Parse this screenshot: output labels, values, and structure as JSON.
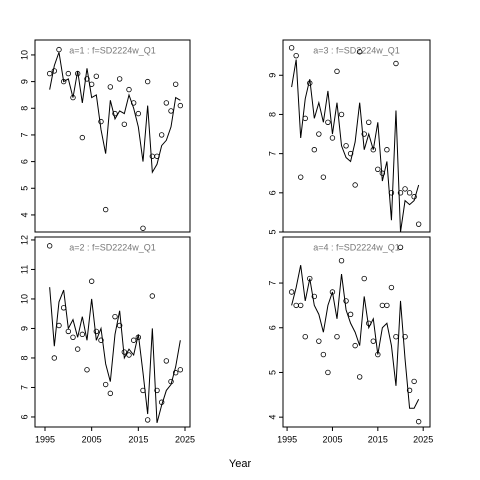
{
  "xlabel": "Year",
  "chart_data": [
    {
      "type": "line",
      "title": "a=1 : f=SD2224w_Q1",
      "x": [
        1996,
        1997,
        1998,
        1999,
        2000,
        2001,
        2002,
        2003,
        2004,
        2005,
        2006,
        2007,
        2008,
        2009,
        2010,
        2011,
        2012,
        2013,
        2014,
        2015,
        2016,
        2017,
        2018,
        2019,
        2020,
        2021,
        2022,
        2023,
        2024
      ],
      "series": [
        {
          "kind": "points",
          "color": "#000000",
          "values": [
            9.3,
            9.4,
            10.2,
            9.0,
            9.3,
            8.4,
            9.3,
            6.9,
            9.1,
            8.9,
            9.2,
            7.5,
            4.2,
            8.8,
            7.8,
            9.1,
            7.4,
            8.7,
            8.2,
            7.8,
            3.5,
            9.0,
            6.2,
            6.2,
            7.0,
            8.2,
            7.9,
            8.9,
            8.1
          ]
        },
        {
          "kind": "line",
          "color": "#000000",
          "values": [
            8.7,
            9.6,
            10.1,
            9.0,
            9.1,
            8.4,
            9.4,
            8.2,
            9.5,
            8.4,
            8.5,
            7.2,
            6.3,
            8.3,
            7.6,
            7.9,
            7.8,
            8.5,
            8.0,
            7.3,
            6.0,
            8.1,
            5.6,
            5.9,
            6.6,
            6.8,
            7.3,
            8.4,
            8.3
          ]
        }
      ],
      "xlim": [
        1992.86,
        2026.07
      ],
      "ylim": [
        3.36,
        10.56
      ],
      "yticks": [
        4,
        5,
        6,
        7,
        8,
        9,
        10
      ]
    },
    {
      "type": "line",
      "title": "a=3 : f=SD2224w_Q1",
      "x": [
        1996,
        1997,
        1998,
        1999,
        2000,
        2001,
        2002,
        2003,
        2004,
        2005,
        2006,
        2007,
        2008,
        2009,
        2010,
        2011,
        2012,
        2013,
        2014,
        2015,
        2016,
        2017,
        2018,
        2019,
        2020,
        2021,
        2022,
        2023,
        2024
      ],
      "series": [
        {
          "kind": "points",
          "color": "#000000",
          "values": [
            9.7,
            9.5,
            6.4,
            7.9,
            8.8,
            7.1,
            7.5,
            6.4,
            7.8,
            7.4,
            9.1,
            8.0,
            7.2,
            7.0,
            6.2,
            9.6,
            7.5,
            7.8,
            7.1,
            6.6,
            6.5,
            7.1,
            6.0,
            9.3,
            6.0,
            6.1,
            6.0,
            5.9,
            5.2
          ]
        },
        {
          "kind": "line",
          "color": "#000000",
          "values": [
            8.7,
            9.4,
            7.4,
            8.4,
            8.9,
            7.9,
            8.3,
            7.8,
            8.6,
            7.5,
            8.3,
            7.2,
            6.9,
            6.8,
            7.3,
            8.3,
            7.1,
            7.5,
            7.1,
            7.8,
            6.3,
            6.8,
            5.3,
            8.1,
            5.0,
            5.8,
            5.7,
            5.8,
            6.2
          ]
        }
      ],
      "xlim": [
        1994.1,
        2026.5
      ],
      "ylim": [
        5,
        9.9
      ],
      "yticks": [
        5,
        6,
        7,
        8,
        9
      ]
    },
    {
      "type": "line",
      "title": "a=2 : f=SD2224w_Q1",
      "x": [
        1996,
        1997,
        1998,
        1999,
        2000,
        2001,
        2002,
        2003,
        2004,
        2005,
        2006,
        2007,
        2008,
        2009,
        2010,
        2011,
        2012,
        2013,
        2014,
        2015,
        2016,
        2017,
        2018,
        2019,
        2020,
        2021,
        2022,
        2023,
        2024
      ],
      "series": [
        {
          "kind": "points",
          "color": "#000000",
          "values": [
            11.8,
            8.0,
            9.1,
            9.7,
            8.9,
            8.7,
            8.3,
            8.8,
            7.6,
            10.6,
            8.9,
            8.6,
            7.1,
            6.8,
            9.4,
            9.1,
            8.2,
            8.1,
            8.6,
            8.7,
            6.9,
            5.9,
            10.1,
            6.9,
            6.5,
            7.9,
            7.2,
            7.5,
            7.6
          ]
        },
        {
          "kind": "line",
          "color": "#000000",
          "values": [
            10.4,
            8.4,
            9.9,
            10.3,
            9.0,
            9.3,
            8.7,
            9.4,
            8.6,
            10.0,
            8.6,
            9.0,
            7.8,
            7.2,
            8.8,
            9.6,
            8.0,
            8.3,
            8.1,
            8.8,
            7.5,
            6.1,
            9.0,
            5.8,
            6.4,
            6.9,
            7.1,
            7.7,
            8.6
          ]
        }
      ],
      "xlim": [
        1992.86,
        2026.07
      ],
      "ylim": [
        5.66,
        12.1
      ],
      "yticks": [
        6,
        7,
        8,
        9,
        10,
        11,
        12
      ],
      "xticks": [
        1995,
        2005,
        2015,
        2025
      ]
    },
    {
      "type": "line",
      "title": "a=4 : f=SD2224w_Q1",
      "x": [
        1996,
        1997,
        1998,
        1999,
        2000,
        2001,
        2002,
        2003,
        2004,
        2005,
        2006,
        2007,
        2008,
        2009,
        2010,
        2011,
        2012,
        2013,
        2014,
        2015,
        2016,
        2017,
        2018,
        2019,
        2020,
        2021,
        2022,
        2023,
        2024
      ],
      "series": [
        {
          "kind": "points",
          "color": "#000000",
          "values": [
            6.8,
            6.5,
            6.5,
            5.8,
            7.1,
            6.7,
            5.7,
            5.4,
            5.0,
            6.8,
            5.8,
            7.5,
            6.6,
            6.3,
            5.6,
            4.9,
            7.1,
            6.1,
            5.7,
            5.4,
            6.5,
            6.5,
            6.9,
            5.8,
            7.8,
            5.8,
            4.6,
            4.8,
            3.9
          ]
        },
        {
          "kind": "line",
          "color": "#000000",
          "values": [
            6.5,
            6.9,
            7.4,
            6.6,
            7.1,
            6.5,
            6.3,
            5.9,
            6.5,
            6.8,
            6.2,
            7.2,
            6.4,
            6.1,
            5.9,
            5.6,
            6.7,
            6.0,
            6.2,
            5.4,
            6.0,
            6.1,
            5.6,
            4.7,
            6.6,
            5.3,
            4.2,
            4.2,
            4.4
          ]
        }
      ],
      "xlim": [
        1994.1,
        2026.5
      ],
      "ylim": [
        3.78,
        8.03
      ],
      "yticks": [
        4,
        5,
        6,
        7
      ],
      "xticks": [
        1995,
        2005,
        2015,
        2025
      ]
    }
  ]
}
